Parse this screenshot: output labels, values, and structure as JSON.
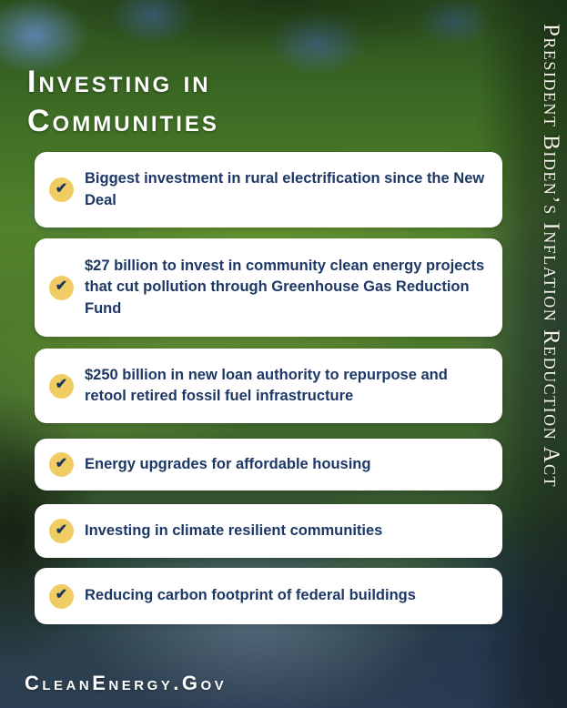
{
  "poster": {
    "title": "Investing in Communities",
    "side_banner": "President Biden’s Inflation Reduction Act",
    "footer_link": "CleanEnergy.Gov",
    "items": [
      "Biggest investment in rural electrification since the New Deal",
      "$27 billion to invest in community clean energy projects that cut pollution through Greenhouse Gas Reduction Fund",
      "$250 billion in new loan authority to repurpose and retool retired fossil fuel infrastructure",
      "Energy upgrades for affordable housing",
      "Investing in climate resilient communities",
      "Reducing carbon footprint of federal buildings"
    ],
    "icons": {
      "check": "✔"
    },
    "colors": {
      "card_background": "#ffffff",
      "card_text": "#1d3866",
      "check_circle": "#f0cd64",
      "check_mark": "#1e355e",
      "title_text": "#ffffff"
    }
  }
}
